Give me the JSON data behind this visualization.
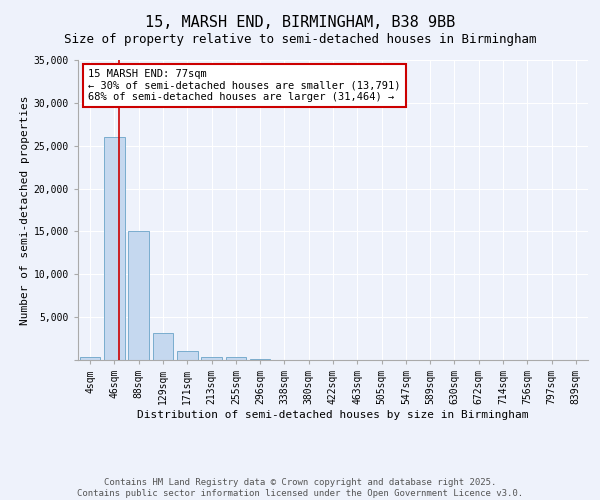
{
  "title": "15, MARSH END, BIRMINGHAM, B38 9BB",
  "subtitle": "Size of property relative to semi-detached houses in Birmingham",
  "xlabel": "Distribution of semi-detached houses by size in Birmingham",
  "ylabel": "Number of semi-detached properties",
  "categories": [
    "4sqm",
    "46sqm",
    "88sqm",
    "129sqm",
    "171sqm",
    "213sqm",
    "255sqm",
    "296sqm",
    "338sqm",
    "380sqm",
    "422sqm",
    "463sqm",
    "505sqm",
    "547sqm",
    "589sqm",
    "630sqm",
    "672sqm",
    "714sqm",
    "756sqm",
    "797sqm",
    "839sqm"
  ],
  "values": [
    400,
    26000,
    15100,
    3200,
    1100,
    400,
    300,
    100,
    0,
    0,
    0,
    0,
    0,
    0,
    0,
    0,
    0,
    0,
    0,
    0,
    0
  ],
  "bar_color": "#c5d8ef",
  "bar_edge_color": "#7aadce",
  "vline_color": "#cc0000",
  "annotation_line1": "15 MARSH END: 77sqm",
  "annotation_line2": "← 30% of semi-detached houses are smaller (13,791)",
  "annotation_line3": "68% of semi-detached houses are larger (31,464) →",
  "annotation_box_color": "#ffffff",
  "annotation_box_edge_color": "#cc0000",
  "ylim": [
    0,
    35000
  ],
  "yticks": [
    0,
    5000,
    10000,
    15000,
    20000,
    25000,
    30000,
    35000
  ],
  "footer_line1": "Contains HM Land Registry data © Crown copyright and database right 2025.",
  "footer_line2": "Contains public sector information licensed under the Open Government Licence v3.0.",
  "background_color": "#eef2fb",
  "plot_background": "#eef2fb",
  "title_fontsize": 11,
  "subtitle_fontsize": 9,
  "axis_label_fontsize": 8,
  "tick_fontsize": 7,
  "annotation_fontsize": 7.5,
  "footer_fontsize": 6.5
}
